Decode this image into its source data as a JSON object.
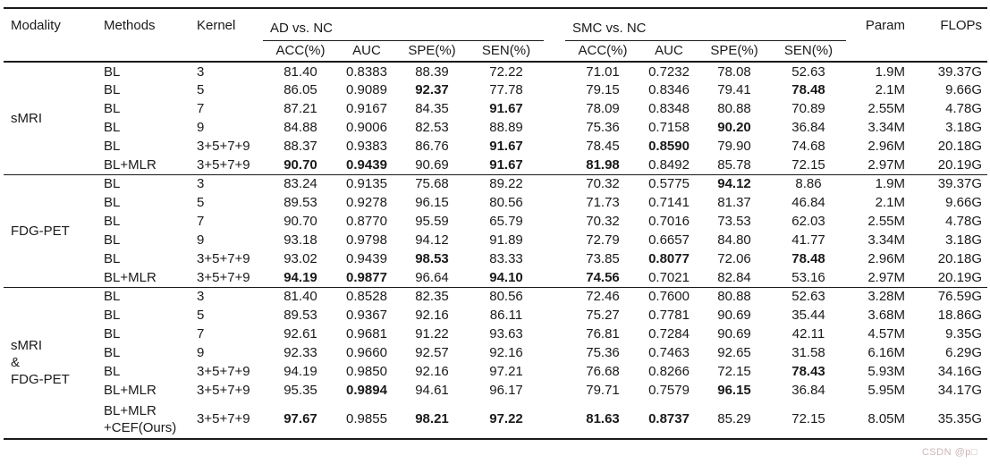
{
  "table": {
    "headers": {
      "modality": "Modality",
      "methods": "Methods",
      "kernel": "Kernel",
      "group_ad": "AD vs. NC",
      "group_smc": "SMC vs. NC",
      "metrics": [
        "ACC(%)",
        "AUC",
        "SPE(%)",
        "SEN(%)"
      ],
      "param": "Param",
      "flops": "FLOPs"
    },
    "blocks": [
      {
        "modality": [
          "sMRI"
        ],
        "rows": [
          {
            "methods": [
              "BL"
            ],
            "kernel": "3",
            "ad": [
              "81.40",
              "0.8383",
              "88.39",
              "72.22"
            ],
            "ad_bold": [],
            "smc": [
              "71.01",
              "0.7232",
              "78.08",
              "52.63"
            ],
            "smc_bold": [],
            "param": "1.9M",
            "flops": "39.37G"
          },
          {
            "methods": [
              "BL"
            ],
            "kernel": "5",
            "ad": [
              "86.05",
              "0.9089",
              "92.37",
              "77.78"
            ],
            "ad_bold": [
              2
            ],
            "smc": [
              "79.15",
              "0.8346",
              "79.41",
              "78.48"
            ],
            "smc_bold": [
              3
            ],
            "param": "2.1M",
            "flops": "9.66G"
          },
          {
            "methods": [
              "BL"
            ],
            "kernel": "7",
            "ad": [
              "87.21",
              "0.9167",
              "84.35",
              "91.67"
            ],
            "ad_bold": [
              3
            ],
            "smc": [
              "78.09",
              "0.8348",
              "80.88",
              "70.89"
            ],
            "smc_bold": [],
            "param": "2.55M",
            "flops": "4.78G"
          },
          {
            "methods": [
              "BL"
            ],
            "kernel": "9",
            "ad": [
              "84.88",
              "0.9006",
              "82.53",
              "88.89"
            ],
            "ad_bold": [],
            "smc": [
              "75.36",
              "0.7158",
              "90.20",
              "36.84"
            ],
            "smc_bold": [
              2
            ],
            "param": "3.34M",
            "flops": "3.18G"
          },
          {
            "methods": [
              "BL"
            ],
            "kernel": "3+5+7+9",
            "ad": [
              "88.37",
              "0.9383",
              "86.76",
              "91.67"
            ],
            "ad_bold": [
              3
            ],
            "smc": [
              "78.45",
              "0.8590",
              "79.90",
              "74.68"
            ],
            "smc_bold": [
              1
            ],
            "param": "2.96M",
            "flops": "20.18G"
          },
          {
            "methods": [
              "BL+MLR"
            ],
            "kernel": "3+5+7+9",
            "ad": [
              "90.70",
              "0.9439",
              "90.69",
              "91.67"
            ],
            "ad_bold": [
              0,
              1,
              3
            ],
            "smc": [
              "81.98",
              "0.8492",
              "85.78",
              "72.15"
            ],
            "smc_bold": [
              0
            ],
            "param": "2.97M",
            "flops": "20.19G"
          }
        ]
      },
      {
        "modality": [
          "FDG-PET"
        ],
        "rows": [
          {
            "methods": [
              "BL"
            ],
            "kernel": "3",
            "ad": [
              "83.24",
              "0.9135",
              "75.68",
              "89.22"
            ],
            "ad_bold": [],
            "smc": [
              "70.32",
              "0.5775",
              "94.12",
              "8.86"
            ],
            "smc_bold": [
              2
            ],
            "param": "1.9M",
            "flops": "39.37G"
          },
          {
            "methods": [
              "BL"
            ],
            "kernel": "5",
            "ad": [
              "89.53",
              "0.9278",
              "96.15",
              "80.56"
            ],
            "ad_bold": [],
            "smc": [
              "71.73",
              "0.7141",
              "81.37",
              "46.84"
            ],
            "smc_bold": [],
            "param": "2.1M",
            "flops": "9.66G"
          },
          {
            "methods": [
              "BL"
            ],
            "kernel": "7",
            "ad": [
              "90.70",
              "0.8770",
              "95.59",
              "65.79"
            ],
            "ad_bold": [],
            "smc": [
              "70.32",
              "0.7016",
              "73.53",
              "62.03"
            ],
            "smc_bold": [],
            "param": "2.55M",
            "flops": "4.78G"
          },
          {
            "methods": [
              "BL"
            ],
            "kernel": "9",
            "ad": [
              "93.18",
              "0.9798",
              "94.12",
              "91.89"
            ],
            "ad_bold": [],
            "smc": [
              "72.79",
              "0.6657",
              "84.80",
              "41.77"
            ],
            "smc_bold": [],
            "param": "3.34M",
            "flops": "3.18G"
          },
          {
            "methods": [
              "BL"
            ],
            "kernel": "3+5+7+9",
            "ad": [
              "93.02",
              "0.9439",
              "98.53",
              "83.33"
            ],
            "ad_bold": [
              2
            ],
            "smc": [
              "73.85",
              "0.8077",
              "72.06",
              "78.48"
            ],
            "smc_bold": [
              1,
              3
            ],
            "param": "2.96M",
            "flops": "20.18G"
          },
          {
            "methods": [
              "BL+MLR"
            ],
            "kernel": "3+5+7+9",
            "ad": [
              "94.19",
              "0.9877",
              "96.64",
              "94.10"
            ],
            "ad_bold": [
              0,
              1,
              3
            ],
            "smc": [
              "74.56",
              "0.7021",
              "82.84",
              "53.16"
            ],
            "smc_bold": [
              0
            ],
            "param": "2.97M",
            "flops": "20.19G"
          }
        ]
      },
      {
        "modality": [
          "sMRI",
          "&",
          "FDG-PET"
        ],
        "rows": [
          {
            "methods": [
              "BL"
            ],
            "kernel": "3",
            "ad": [
              "81.40",
              "0.8528",
              "82.35",
              "80.56"
            ],
            "ad_bold": [],
            "smc": [
              "72.46",
              "0.7600",
              "80.88",
              "52.63"
            ],
            "smc_bold": [],
            "param": "3.28M",
            "flops": "76.59G"
          },
          {
            "methods": [
              "BL"
            ],
            "kernel": "5",
            "ad": [
              "89.53",
              "0.9367",
              "92.16",
              "86.11"
            ],
            "ad_bold": [],
            "smc": [
              "75.27",
              "0.7781",
              "90.69",
              "35.44"
            ],
            "smc_bold": [],
            "param": "3.68M",
            "flops": "18.86G"
          },
          {
            "methods": [
              "BL"
            ],
            "kernel": "7",
            "ad": [
              "92.61",
              "0.9681",
              "91.22",
              "93.63"
            ],
            "ad_bold": [],
            "smc": [
              "76.81",
              "0.7284",
              "90.69",
              "42.11"
            ],
            "smc_bold": [],
            "param": "4.57M",
            "flops": "9.35G"
          },
          {
            "methods": [
              "BL"
            ],
            "kernel": "9",
            "ad": [
              "92.33",
              "0.9660",
              "92.57",
              "92.16"
            ],
            "ad_bold": [],
            "smc": [
              "75.36",
              "0.7463",
              "92.65",
              "31.58"
            ],
            "smc_bold": [],
            "param": "6.16M",
            "flops": "6.29G"
          },
          {
            "methods": [
              "BL"
            ],
            "kernel": "3+5+7+9",
            "ad": [
              "94.19",
              "0.9850",
              "92.16",
              "97.21"
            ],
            "ad_bold": [],
            "smc": [
              "76.68",
              "0.8266",
              "72.15",
              "78.43"
            ],
            "smc_bold": [
              3
            ],
            "param": "5.93M",
            "flops": "34.16G"
          },
          {
            "methods": [
              "BL+MLR"
            ],
            "kernel": "3+5+7+9",
            "ad": [
              "95.35",
              "0.9894",
              "94.61",
              "96.17"
            ],
            "ad_bold": [
              1
            ],
            "smc": [
              "79.71",
              "0.7579",
              "96.15",
              "36.84"
            ],
            "smc_bold": [
              2
            ],
            "param": "5.95M",
            "flops": "34.17G"
          },
          {
            "methods": [
              "BL+MLR",
              "+CEF(Ours)"
            ],
            "kernel": "3+5+7+9",
            "ad": [
              "97.67",
              "0.9855",
              "98.21",
              "97.22"
            ],
            "ad_bold": [
              0,
              2,
              3
            ],
            "smc": [
              "81.63",
              "0.8737",
              "85.29",
              "72.15"
            ],
            "smc_bold": [
              0,
              1
            ],
            "param": "8.05M",
            "flops": "35.35G"
          }
        ]
      }
    ]
  },
  "watermark": "CSDN @p□"
}
